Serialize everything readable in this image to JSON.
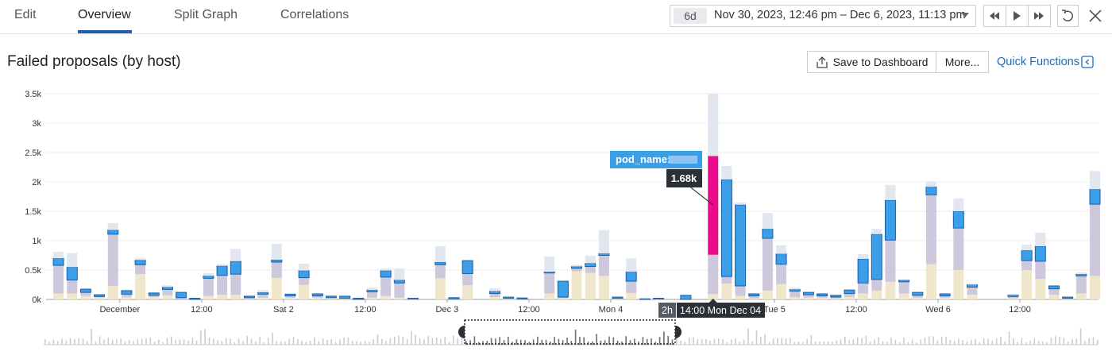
{
  "tabs": [
    "Edit",
    "Overview",
    "Split Graph",
    "Correlations"
  ],
  "active_tab": 1,
  "time_range": {
    "badge": "6d",
    "text": "Nov 30, 2023, 12:46 pm – Dec 6, 2023, 11:13 pm"
  },
  "title": "Failed proposals (by host)",
  "actions": [
    "Save to Dashboard",
    "More...",
    "Quick Functions"
  ],
  "chart_data": {
    "type": "bar",
    "stacked": true,
    "grid": true,
    "categories": [
      null,
      null,
      null,
      null,
      null,
      null,
      null,
      null,
      null,
      null,
      null,
      null,
      null,
      null,
      null,
      null,
      null,
      null,
      null,
      null,
      null,
      null,
      null,
      null,
      null,
      null,
      null,
      null,
      null,
      null,
      null,
      null,
      null,
      null,
      null,
      null,
      null,
      null,
      null,
      null,
      null,
      null,
      null,
      null,
      null,
      null,
      null,
      null,
      null,
      null,
      null,
      null,
      null,
      null,
      null,
      null,
      null,
      null,
      null,
      null,
      null,
      null,
      null,
      null,
      null,
      null,
      null,
      null,
      null,
      null,
      null,
      null,
      null,
      null,
      null,
      null,
      null
    ],
    "series": [
      {
        "color": "#efe6cc",
        "values": [
          100,
          100,
          60,
          30,
          230,
          40,
          430,
          40,
          70,
          0,
          0,
          60,
          80,
          80,
          10,
          30,
          365,
          30,
          250,
          30,
          20,
          10,
          0,
          30,
          60,
          30,
          0,
          0,
          360,
          0,
          240,
          0,
          40,
          10,
          0,
          0,
          100,
          20,
          480,
          450,
          400,
          10,
          110,
          0,
          0,
          0,
          0,
          0,
          90,
          270,
          60,
          20,
          150,
          260,
          40,
          30,
          30,
          20,
          40,
          100,
          150,
          300,
          100,
          30,
          600,
          30,
          500,
          80,
          0,
          0,
          20,
          500,
          350,
          80,
          10,
          100,
          400
        ]
      },
      {
        "color": "#cdc8dc",
        "values": [
          480,
          230,
          60,
          20,
          880,
          50,
          160,
          30,
          100,
          30,
          0,
          300,
          330,
          350,
          20,
          60,
          270,
          30,
          120,
          30,
          10,
          10,
          0,
          100,
          320,
          250,
          10,
          0,
          230,
          10,
          200,
          0,
          60,
          10,
          10,
          0,
          350,
          20,
          50,
          110,
          350,
          10,
          200,
          0,
          10,
          0,
          0,
          0,
          670,
          120,
          170,
          40,
          890,
          340,
          100,
          50,
          30,
          20,
          60,
          180,
          190,
          710,
          200,
          40,
          1180,
          30,
          715,
          130,
          0,
          0,
          30,
          160,
          300,
          100,
          10,
          300,
          1220
        ]
      },
      {
        "color": "#3b9ee8",
        "values": [
          120,
          220,
          55,
          30,
          70,
          60,
          80,
          40,
          40,
          90,
          20,
          40,
          160,
          220,
          25,
          30,
          40,
          30,
          120,
          35,
          25,
          35,
          20,
          30,
          110,
          50,
          10,
          0,
          45,
          20,
          220,
          0,
          40,
          20,
          15,
          0,
          20,
          270,
          30,
          55,
          30,
          20,
          160,
          10,
          10,
          0,
          70,
          0,
          1680,
          1650,
          1380,
          35,
          160,
          175,
          30,
          40,
          35,
          30,
          60,
          410,
          770,
          680,
          30,
          50,
          135,
          35,
          285,
          40,
          0,
          0,
          25,
          175,
          255,
          50,
          20,
          30,
          255
        ]
      },
      {
        "color": "#e1e6ef",
        "values": [
          110,
          240,
          0,
          0,
          120,
          0,
          30,
          0,
          30,
          0,
          0,
          50,
          30,
          210,
          0,
          40,
          270,
          0,
          120,
          0,
          0,
          0,
          0,
          40,
          35,
          195,
          0,
          0,
          270,
          0,
          0,
          0,
          50,
          0,
          0,
          0,
          260,
          0,
          30,
          130,
          400,
          0,
          230,
          0,
          0,
          0,
          0,
          0,
          1060,
          230,
          40,
          0,
          270,
          145,
          30,
          0,
          0,
          0,
          0,
          80,
          90,
          260,
          10,
          0,
          95,
          0,
          220,
          20,
          0,
          0,
          20,
          95,
          230,
          0,
          0,
          30,
          310
        ]
      }
    ],
    "highlight": {
      "index": 48,
      "series": 2,
      "color": "#ec0b8c"
    },
    "ylim": [
      0,
      3500
    ],
    "yticks": [
      {
        "value": 0,
        "label": "0k"
      },
      {
        "value": 500,
        "label": "0.5k"
      },
      {
        "value": 1000,
        "label": "1k"
      },
      {
        "value": 1500,
        "label": "1.5k"
      },
      {
        "value": 2000,
        "label": "2k"
      },
      {
        "value": 2500,
        "label": "2.5k"
      },
      {
        "value": 3000,
        "label": "3k"
      },
      {
        "value": 3500,
        "label": "3.5k"
      }
    ],
    "xticks": [
      {
        "value": 5,
        "label": "December"
      },
      {
        "value": 11,
        "label": "12:00"
      },
      {
        "value": 17,
        "label": "Sat 2"
      },
      {
        "value": 23,
        "label": "12:00"
      },
      {
        "value": 29,
        "label": "Dec 3"
      },
      {
        "value": 35,
        "label": "12:00"
      },
      {
        "value": 41,
        "label": "Mon 4"
      },
      {
        "value": 53,
        "label": "Tue 5"
      },
      {
        "value": 59,
        "label": "12:00"
      },
      {
        "value": 65,
        "label": "Wed 6"
      },
      {
        "value": 71,
        "label": "12:00"
      }
    ],
    "tooltip": {
      "tag": "pod_name:",
      "value_label": "1.68k",
      "interval": "2h",
      "time": "14:00 Mon Dec 04"
    }
  }
}
